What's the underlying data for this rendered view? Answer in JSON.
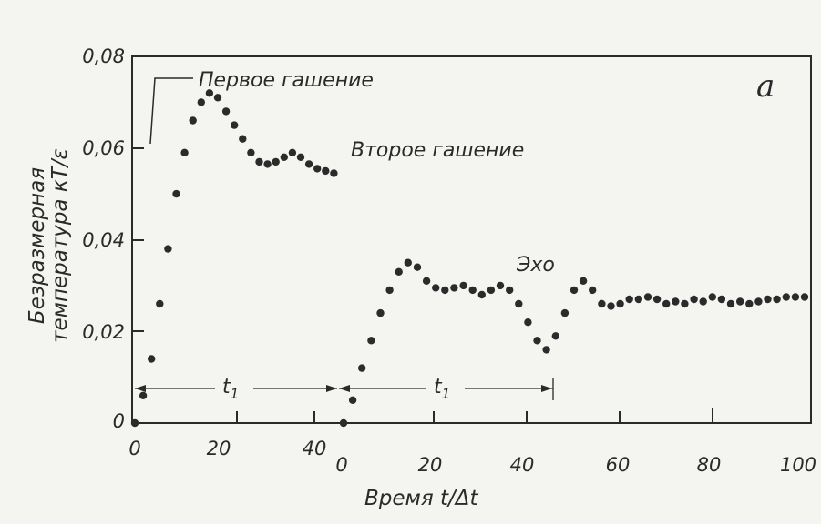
{
  "chart_data": {
    "type": "scatter",
    "panel_label": "a",
    "ylabel_line1": "Безразмерная",
    "ylabel_line2": "температура кТ/ε",
    "xlabel": "Время t/Δt",
    "ylim": [
      0,
      0.08
    ],
    "y_ticks": [
      "0",
      "0,02",
      "0,04",
      "0,06",
      "0,08"
    ],
    "x_ticks_left": [
      "0",
      "20",
      "40"
    ],
    "x_ticks_right": [
      "0",
      "20",
      "40",
      "60",
      "80",
      "100"
    ],
    "grid": false,
    "annotations": {
      "first_quench": "Первое гашение",
      "second_quench": "Второе гашение",
      "echo": "Эхо",
      "t1_left": "t",
      "t1_right": "t",
      "t1_sub": "1"
    },
    "series": [
      {
        "segment": "before second quench",
        "x": [
          0,
          2,
          4,
          6,
          8,
          10,
          12,
          14,
          16,
          18,
          20,
          22,
          24,
          26,
          28,
          30,
          32,
          34,
          36,
          38,
          40,
          42,
          44,
          46,
          48
        ],
        "y": [
          0.0,
          0.006,
          0.014,
          0.026,
          0.038,
          0.05,
          0.059,
          0.066,
          0.07,
          0.072,
          0.071,
          0.068,
          0.065,
          0.062,
          0.059,
          0.057,
          0.0565,
          0.057,
          0.058,
          0.059,
          0.058,
          0.0565,
          0.0555,
          0.055,
          0.0545
        ]
      },
      {
        "segment": "after second quench",
        "x": [
          0,
          2,
          4,
          6,
          8,
          10,
          12,
          14,
          16,
          18,
          20,
          22,
          24,
          26,
          28,
          30,
          32,
          34,
          36,
          38,
          40,
          42,
          44,
          46,
          48,
          50,
          52,
          54,
          56,
          58,
          60,
          62,
          64,
          66,
          68,
          70,
          72,
          74,
          76,
          78,
          80,
          82,
          84,
          86,
          88,
          90,
          92,
          94,
          96,
          98,
          100
        ],
        "y": [
          0.0,
          0.005,
          0.012,
          0.018,
          0.024,
          0.029,
          0.033,
          0.035,
          0.034,
          0.031,
          0.0295,
          0.029,
          0.0295,
          0.03,
          0.029,
          0.028,
          0.029,
          0.03,
          0.029,
          0.026,
          0.022,
          0.018,
          0.016,
          0.019,
          0.024,
          0.029,
          0.031,
          0.029,
          0.026,
          0.0255,
          0.026,
          0.027,
          0.027,
          0.0275,
          0.027,
          0.026,
          0.0265,
          0.026,
          0.027,
          0.0265,
          0.0275,
          0.027,
          0.026,
          0.0265,
          0.026,
          0.0265,
          0.027,
          0.027,
          0.0275,
          0.0275,
          0.0275
        ]
      }
    ]
  }
}
